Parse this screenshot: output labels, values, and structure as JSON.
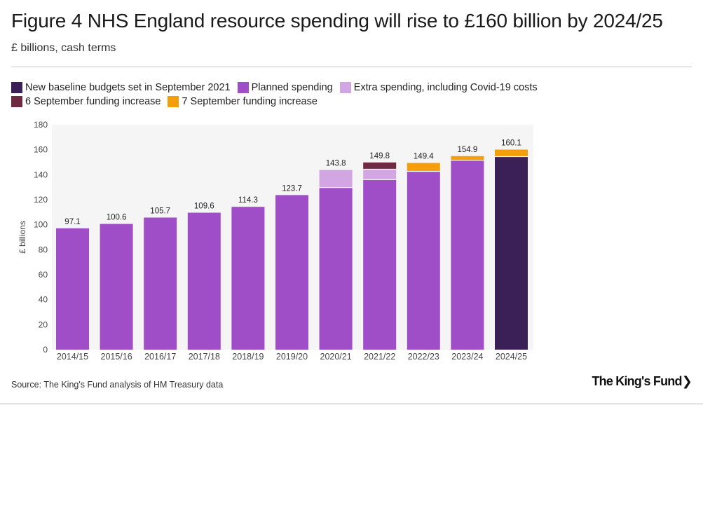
{
  "title": "Figure 4 NHS England resource spending will rise to £160 billion by 2024/25",
  "subtitle": "£ billions, cash terms",
  "source": "Source: The King's Fund analysis of HM Treasury data",
  "logo": "The King's Fund",
  "logo_chevron": "❯",
  "chart_data": {
    "type": "bar",
    "stacked": true,
    "categories": [
      "2014/15",
      "2015/16",
      "2016/17",
      "2017/18",
      "2018/19",
      "2019/20",
      "2020/21",
      "2021/22",
      "2022/23",
      "2023/24",
      "2024/25"
    ],
    "series": [
      {
        "name": "New baseline budgets set in September 2021",
        "color": "#3b1f57",
        "values": [
          0,
          0,
          0,
          0,
          0,
          0,
          0,
          0,
          0,
          0,
          154.5
        ]
      },
      {
        "name": "Planned spending",
        "color": "#a04dc8",
        "values": [
          97.1,
          100.6,
          105.7,
          109.6,
          114.3,
          123.7,
          129.7,
          136.1,
          142.7,
          151.5,
          0
        ]
      },
      {
        "name": "Extra spending, including Covid-19 costs",
        "color": "#d2a6e2",
        "values": [
          0,
          0,
          0,
          0,
          0,
          0,
          14.1,
          8.3,
          0,
          0,
          0
        ]
      },
      {
        "name": "6 September funding increase",
        "color": "#6e2a42",
        "values": [
          0,
          0,
          0,
          0,
          0,
          0,
          0,
          5.4,
          0,
          0,
          0
        ]
      },
      {
        "name": "7 September funding increase",
        "color": "#f59e0b",
        "values": [
          0,
          0,
          0,
          0,
          0,
          0,
          0,
          0,
          6.7,
          3.4,
          5.6
        ]
      }
    ],
    "totals": [
      "97.1",
      "100.6",
      "105.7",
      "109.6",
      "114.3",
      "123.7",
      "143.8",
      "149.8",
      "149.4",
      "154.9",
      "160.1"
    ],
    "ylabel": "£ billions",
    "xlabel": "",
    "ylim": [
      0,
      180
    ],
    "yticks": [
      0,
      20,
      40,
      60,
      80,
      100,
      120,
      140,
      160,
      180
    ],
    "legend_position": "top-left",
    "grid": false,
    "plot_background": "#f5f5f5"
  }
}
